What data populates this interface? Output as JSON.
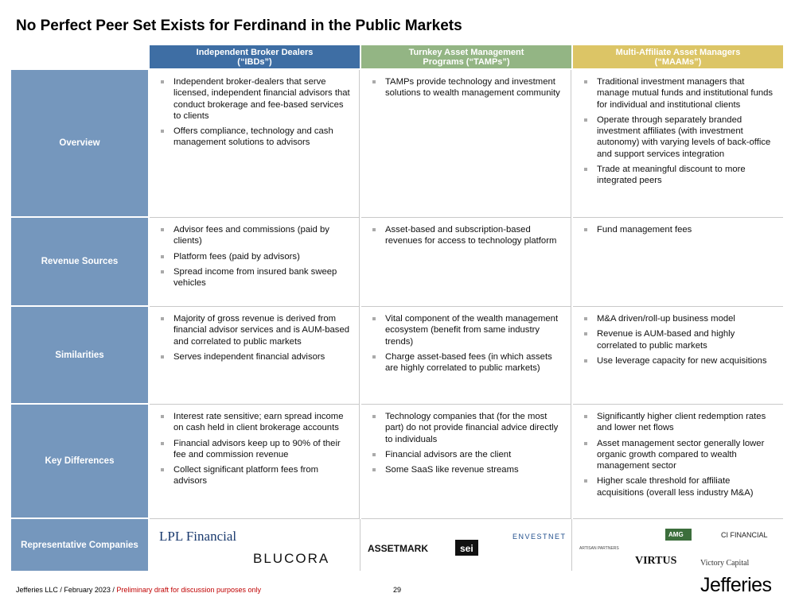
{
  "title": "No Perfect Peer Set Exists for Ferdinand in the Public Markets",
  "table": {
    "columns": [
      "Independent Broker Dealers (“IBDs”)",
      "Turnkey Asset Management Programs (“TAMPs”)",
      "Multi-Affiliate Asset Managers (“MAAMs”)"
    ],
    "rows": [
      {
        "label": "Overview",
        "cells": [
          [
            "Independent broker-dealers that serve licensed, independent financial advisors that conduct brokerage and fee-based services to clients",
            "Offers compliance, technology and cash management solutions to advisors"
          ],
          [
            "TAMPs provide technology and investment solutions to wealth management community"
          ],
          [
            "Traditional investment managers that manage mutual funds and institutional funds for individual and institutional clients",
            "Operate through separately branded investment affiliates (with investment autonomy) with varying levels of back-office and support services integration",
            "Trade at meaningful discount to more integrated peers"
          ]
        ]
      },
      {
        "label": "Revenue Sources",
        "cells": [
          [
            "Advisor fees and commissions (paid by clients)",
            "Platform fees (paid by advisors)",
            "Spread income from insured bank sweep vehicles"
          ],
          [
            "Asset-based and subscription-based revenues for access to technology platform"
          ],
          [
            "Fund management fees"
          ]
        ]
      },
      {
        "label": "Similarities",
        "cells": [
          [
            "Majority of gross revenue is derived from financial advisor services and is AUM-based and correlated to public markets",
            "Serves independent financial advisors"
          ],
          [
            "Vital component of the wealth management ecosystem (benefit from same industry trends)",
            "Charge asset-based fees (in which assets are highly correlated to public markets)"
          ],
          [
            "M&A driven/roll-up business model",
            "Revenue is AUM-based and highly correlated to public markets",
            "Use leverage capacity for new acquisitions"
          ]
        ]
      },
      {
        "label": "Key Differences",
        "cells": [
          [
            "Interest rate sensitive; earn spread income on cash held in client brokerage accounts",
            "Financial advisors keep up to 90% of their fee and commission revenue",
            "Collect significant platform fees from advisors"
          ],
          [
            "Technology companies that (for the most part) do not provide financial advice directly to individuals",
            "Financial advisors are the client",
            "Some SaaS like revenue streams"
          ],
          [
            "Significantly higher client redemption rates and lower net flows",
            "Asset management sector generally lower organic growth compared to wealth management sector",
            "Higher scale threshold for affiliate acquisitions (overall less industry M&A)"
          ]
        ]
      }
    ],
    "companies": {
      "label": "Representative Companies",
      "logos": [
        [
          "LPL Financial",
          "BLUCORA"
        ],
        [
          "ASSETMARK",
          "sei",
          "ENVESTNET"
        ],
        [
          "ARTISAN PARTNERS",
          "AMG",
          "CI FINANCIAL",
          "VIRTUS",
          "Victory Capital"
        ]
      ]
    }
  },
  "footer": {
    "source": "Jefferies LLC / February 2023 /",
    "note": "Preliminary draft for discussion purposes only",
    "page": "29",
    "brand": "Jefferies"
  }
}
